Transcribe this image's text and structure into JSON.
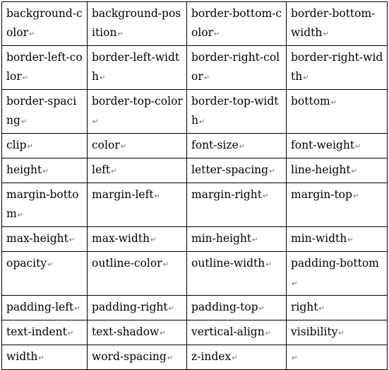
{
  "paragraph_mark": "↵",
  "rows": [
    [
      "background-color",
      "background-position",
      "border-bottom-color",
      "border-bottom-width"
    ],
    [
      "border-left-color",
      "border-left-width",
      "border-right-color",
      "border-right-width"
    ],
    [
      "border-spacing",
      "border-top-color",
      "border-top-width",
      "bottom"
    ],
    [
      "clip",
      "color",
      "font-size",
      "font-weight"
    ],
    [
      "height",
      "left",
      "letter-spacing",
      "line-height"
    ],
    [
      "margin-bottom",
      "margin-left",
      "margin-right",
      "margin-top"
    ],
    [
      "max-height",
      "max-width",
      "min-height",
      "min-width"
    ],
    [
      "opacity",
      "outline-color",
      "outline-width",
      "padding-bottom"
    ],
    [
      "padding-left",
      "padding-right",
      "padding-top",
      "right"
    ],
    [
      "text-indent",
      "text-shadow",
      "vertical-align",
      "visibility"
    ],
    [
      "width",
      "word-spacing",
      "z-index",
      ""
    ]
  ]
}
